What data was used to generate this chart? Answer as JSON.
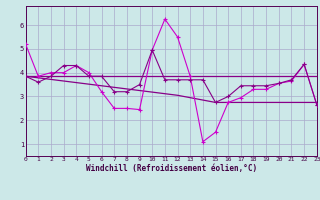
{
  "background_color": "#cce8e8",
  "grid_color": "#aaaacc",
  "xlabel": "Windchill (Refroidissement éolien,°C)",
  "xlim": [
    0,
    23
  ],
  "ylim": [
    0.5,
    6.8
  ],
  "yticks": [
    1,
    2,
    3,
    4,
    5,
    6
  ],
  "xticks": [
    0,
    1,
    2,
    3,
    4,
    5,
    6,
    7,
    8,
    9,
    10,
    11,
    12,
    13,
    14,
    15,
    16,
    17,
    18,
    19,
    20,
    21,
    22,
    23
  ],
  "line1_x": [
    0,
    1,
    2,
    3,
    4,
    5,
    6,
    7,
    8,
    9,
    10,
    11,
    12,
    13,
    14,
    15,
    16,
    17,
    18,
    19,
    20,
    21,
    22,
    23
  ],
  "line1_y": [
    5.2,
    3.85,
    4.0,
    4.0,
    4.3,
    4.0,
    3.2,
    2.5,
    2.5,
    2.45,
    4.95,
    6.25,
    5.5,
    3.85,
    1.1,
    1.5,
    2.75,
    2.95,
    3.3,
    3.3,
    3.55,
    3.65,
    4.35,
    2.65
  ],
  "line2_x": [
    0,
    23
  ],
  "line2_y": [
    3.85,
    3.85
  ],
  "line3_x": [
    0,
    12,
    15,
    23
  ],
  "line3_y": [
    3.85,
    3.05,
    2.75,
    2.75
  ],
  "line4_x": [
    0,
    1,
    2,
    3,
    4,
    5,
    6,
    7,
    8,
    9,
    10,
    11,
    12,
    13,
    14,
    15,
    16,
    17,
    18,
    19,
    20,
    21,
    22,
    23
  ],
  "line4_y": [
    3.85,
    3.6,
    3.85,
    4.3,
    4.3,
    3.85,
    3.85,
    3.2,
    3.2,
    3.5,
    4.95,
    3.7,
    3.7,
    3.7,
    3.7,
    2.75,
    3.0,
    3.45,
    3.45,
    3.45,
    3.55,
    3.7,
    4.35,
    2.65
  ],
  "c_dark": "#880088",
  "c_bright": "#cc00cc"
}
